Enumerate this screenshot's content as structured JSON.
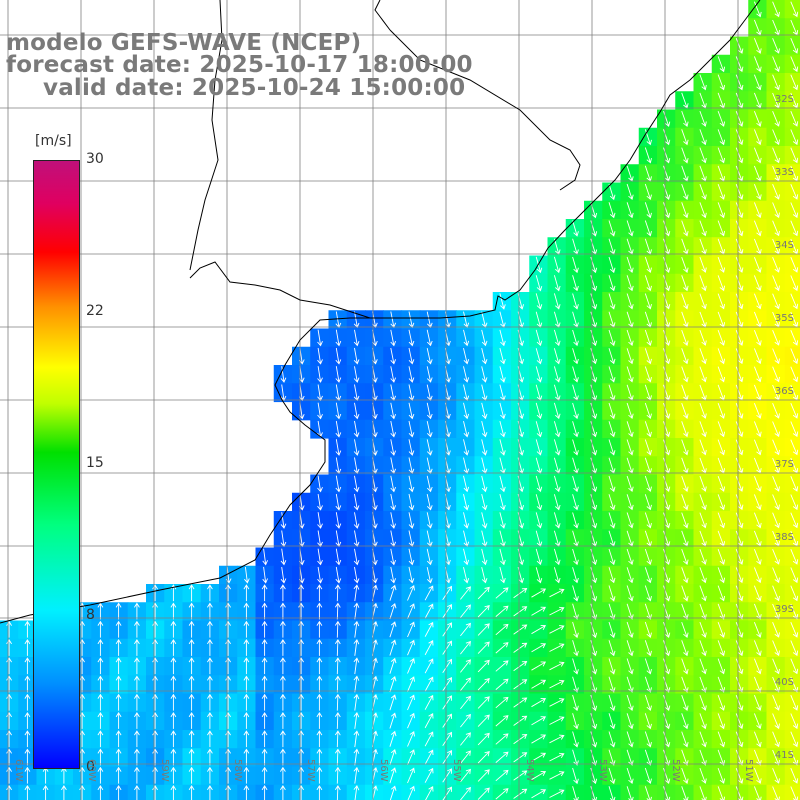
{
  "title": {
    "line1": "modelo GEFS-WAVE (NCEP)",
    "line2": "forecast date: 2025-10-17 18:00:00",
    "line3": "valid date: 2025-10-24 15:00:00"
  },
  "colorbar": {
    "unit": "[m/s]",
    "ticks": [
      "30",
      "22",
      "15",
      "8",
      "0"
    ],
    "range": [
      0,
      30
    ],
    "colors": [
      "#0000ff",
      "#0090ff",
      "#00f0ff",
      "#00ff80",
      "#00e000",
      "#c0ff00",
      "#ffff00",
      "#ff9000",
      "#ff0000",
      "#c0107a"
    ]
  },
  "latitude_labels": [
    "32S",
    "33S",
    "34S",
    "35S",
    "36S",
    "37S",
    "38S",
    "39S",
    "40S",
    "41S"
  ],
  "longitude_labels": [
    "61W",
    "60W",
    "59W",
    "58W",
    "57W",
    "56W",
    "55W",
    "54W",
    "53W",
    "52W",
    "51W"
  ],
  "map": {
    "grid": true,
    "land_color": "#ffffff",
    "coast_color": "#000000",
    "arrow_color": "#ffffff"
  }
}
